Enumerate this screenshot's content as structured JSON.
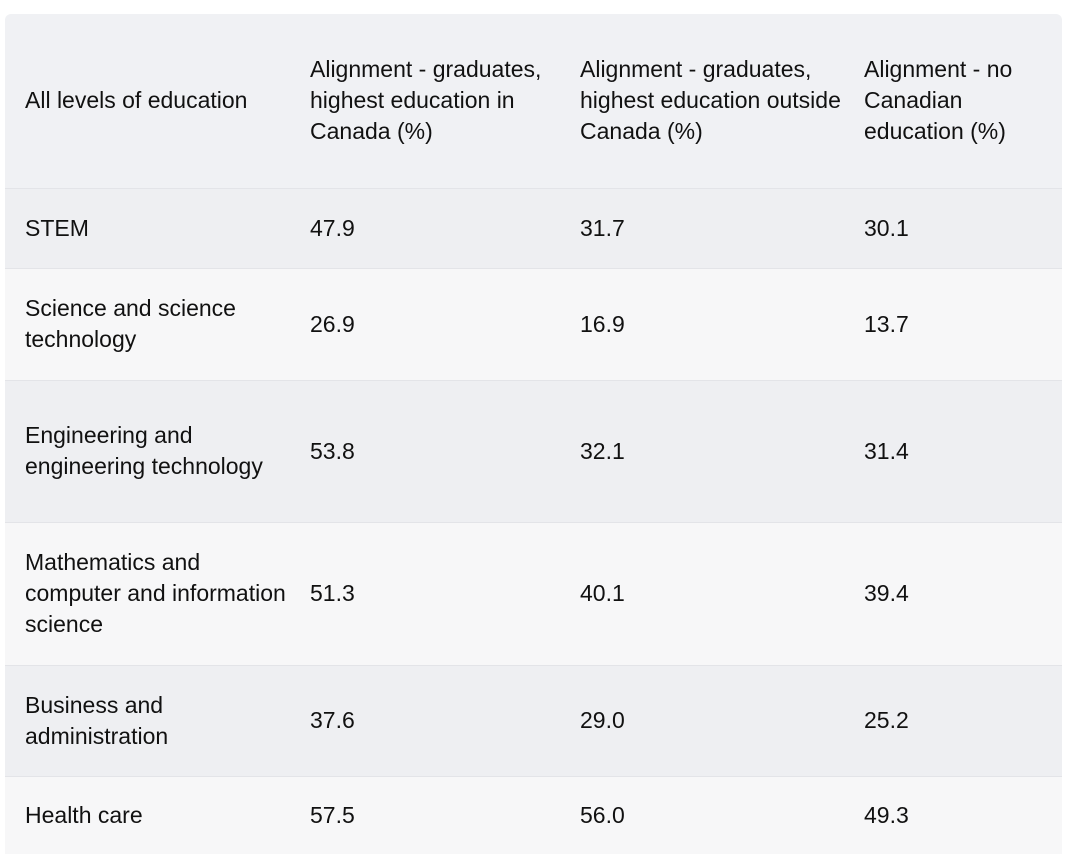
{
  "table": {
    "headers": [
      "All levels of education",
      "Alignment - graduates, highest education in Canada (%)",
      "Alignment - graduates, highest education outside Canada (%)",
      "Alignment - no Canadian education (%)"
    ],
    "rows": [
      {
        "field": "STEM",
        "canada": "47.9",
        "outside": "31.7",
        "none": "30.1"
      },
      {
        "field": "Science and science technology",
        "canada": "26.9",
        "outside": "16.9",
        "none": "13.7"
      },
      {
        "field": "Engineering and engineering technology",
        "canada": "53.8",
        "outside": "32.1",
        "none": "31.4"
      },
      {
        "field": "Mathematics and computer and information science",
        "canada": "51.3",
        "outside": "40.1",
        "none": "39.4"
      },
      {
        "field": "Business and administration",
        "canada": "37.6",
        "outside": "29.0",
        "none": "25.2"
      },
      {
        "field": "Health care",
        "canada": "57.5",
        "outside": "56.0",
        "none": "49.3"
      }
    ]
  }
}
